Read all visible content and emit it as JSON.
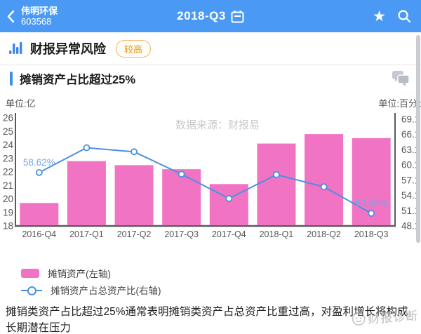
{
  "header": {
    "company_name": "伟明环保",
    "company_code": "603568",
    "period": "2018-Q3"
  },
  "risk_row": {
    "title": "财报异常风险",
    "badge": "较高"
  },
  "banner": {
    "title": "摊销资产占比超过25%"
  },
  "chart_data": {
    "type": "bar+line",
    "unit_left": "单位:亿",
    "unit_right": "单位:百分比",
    "watermark": "数据来源：财报易",
    "categories": [
      "2016-Q4",
      "2017-Q1",
      "2017-Q2",
      "2017-Q3",
      "2017-Q4",
      "2018-Q1",
      "2018-Q2",
      "2018-Q3"
    ],
    "series": [
      {
        "name": "摊销资产(左轴)",
        "type": "bar",
        "axis": "left",
        "color": "#f173c3",
        "values": [
          19.7,
          22.8,
          22.5,
          22.2,
          21.1,
          24.1,
          24.8,
          24.5
        ]
      },
      {
        "name": "摊销资产占总资产比(右轴)",
        "type": "line",
        "axis": "right",
        "color": "#4a90e2",
        "values": [
          58.62,
          63.5,
          62.7,
          58.3,
          53.5,
          58.2,
          55.8,
          50.58
        ],
        "point_labels": [
          "58.62%",
          "",
          "",
          "",
          "",
          "",
          "",
          "50.58%"
        ]
      }
    ],
    "left_axis": {
      "min": 18,
      "max": 26,
      "ticks": [
        "26",
        "25",
        "24",
        "23",
        "22",
        "21",
        "20",
        "19",
        "18"
      ]
    },
    "right_axis": {
      "min": 48.1,
      "max": 69.1,
      "ticks": [
        "69.1",
        "66.1",
        "63.1",
        "60.1",
        "57.1",
        "54.1",
        "51.1",
        "48.1"
      ]
    },
    "legend_position": "bottom-left",
    "grid": false
  },
  "legend": [
    {
      "label": "摊销资产(左轴)"
    },
    {
      "label": "摊销资产占总资产比(右轴)"
    }
  ],
  "description": "摊销类资产占比超过25%通常表明摊销类资产占总资产比重过高，对盈利增长将构成长期潜在压力",
  "footer_watermark": "财报诊断",
  "colors": {
    "header_bg": "#4a9af5",
    "bar": "#f173c3",
    "line": "#4a90e2",
    "point_label": "#74a7e6",
    "badge": "#e8960f",
    "accent": "#3f8ceb",
    "axis_text": "#555555",
    "watermark": "#c9c9c9"
  }
}
